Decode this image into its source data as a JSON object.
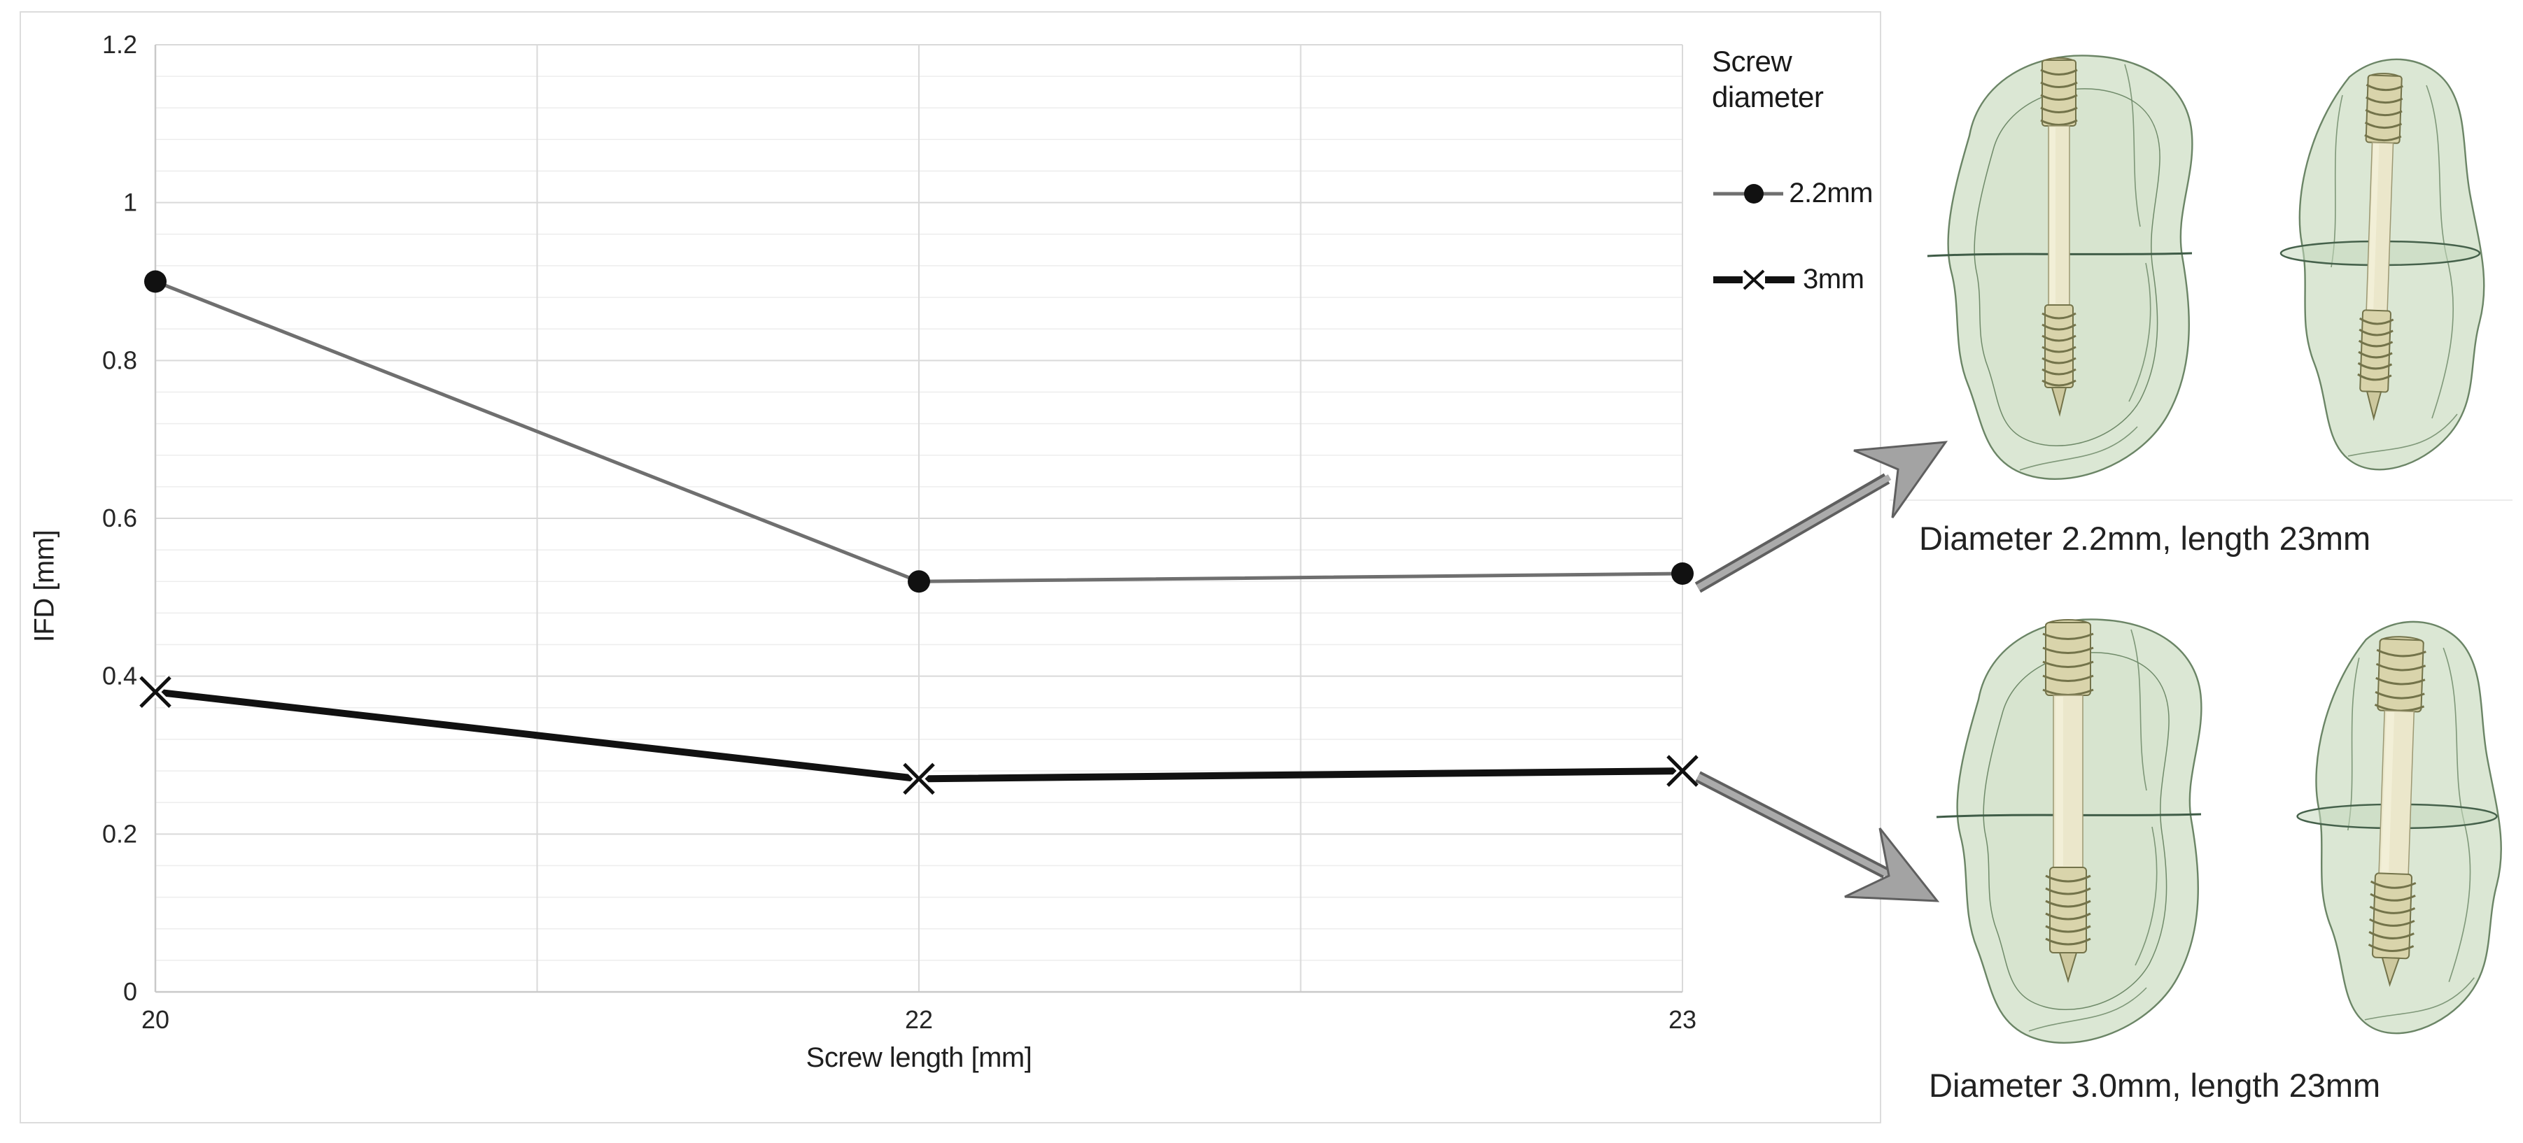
{
  "figure": {
    "captions": {
      "top": "Diameter 2.2mm, length 23mm",
      "bottom": "Diameter 3.0mm, length 23mm"
    }
  },
  "chart_data": {
    "type": "line",
    "title": "",
    "xlabel": "Screw length [mm]",
    "ylabel": "IFD [mm]",
    "categories": [
      20,
      22,
      23
    ],
    "category_positions": [
      0,
      0.5,
      1
    ],
    "x_gridline_positions": [
      0,
      0.25,
      0.5,
      0.75,
      1
    ],
    "ylim": [
      0,
      1.2
    ],
    "y_major_ticks": [
      0,
      0.2,
      0.4,
      0.6,
      0.8,
      1,
      1.2
    ],
    "y_tick_labels": [
      "0",
      "0.2",
      "0.4",
      "0.6",
      "0.8",
      "1",
      "1.2"
    ],
    "y_minor_step": 0.04,
    "grid": true,
    "legend": {
      "title": "Screw diameter",
      "position": "right",
      "entries": [
        "2.2mm",
        "3mm"
      ]
    },
    "series": [
      {
        "name": "2.2mm",
        "values": [
          0.9,
          0.52,
          0.53
        ],
        "color": "#6f6f6f",
        "marker": "circle",
        "marker_color": "#111111",
        "line_width": 5
      },
      {
        "name": "3mm",
        "values": [
          0.38,
          0.27,
          0.28
        ],
        "color": "#111111",
        "marker": "x",
        "marker_color": "#111111",
        "line_width": 10
      }
    ]
  },
  "colors": {
    "gridline_major": "#d9d9d9",
    "gridline_minor": "#ededed",
    "axis_line": "#c9c9c9",
    "chart_border": "#dcdcdc",
    "arrow_fill": "#a3a3a3",
    "arrow_outline": "#5f5f5f",
    "bone_fill": "#dbe7d4",
    "bone_outline": "#6b8566",
    "screw_fill": "#ebe7cb",
    "text": "#262626"
  }
}
